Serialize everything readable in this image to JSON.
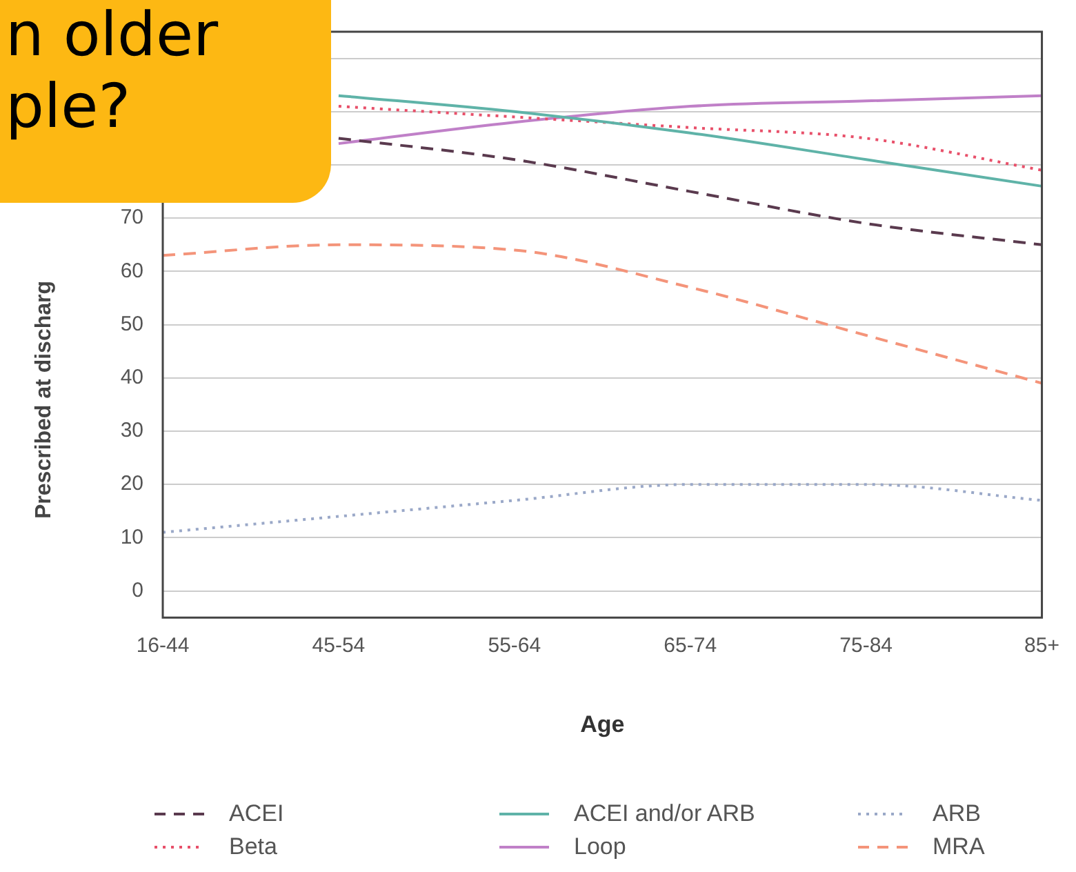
{
  "chart_data": {
    "type": "line",
    "xlabel": "Age",
    "ylabel": "Prescribed at discharg",
    "categories": [
      "16-44",
      "45-54",
      "55-64",
      "65-74",
      "75-84",
      "85+"
    ],
    "ylim": [
      -5,
      105
    ],
    "yticks": [
      0,
      10,
      20,
      30,
      40,
      50,
      60,
      70,
      {
        "value": 80,
        "label": null
      },
      {
        "value": 90,
        "label": null
      },
      {
        "value": 100,
        "label": null
      }
    ],
    "grid": "y",
    "legend": "bottom",
    "marker": "none",
    "annotations": [
      "n older\nple?"
    ],
    "series": [
      {
        "name": "ACEI",
        "color": "#5a3a4e",
        "line_style": "dashed",
        "values": [
          null,
          85,
          81,
          75,
          69,
          65
        ]
      },
      {
        "name": "ACEI and/or ARB",
        "color": "#5fb3a8",
        "line_style": "solid",
        "values": [
          null,
          93,
          90,
          86,
          81,
          76
        ]
      },
      {
        "name": "ARB",
        "color": "#9aa8c8",
        "line_style": "dotted",
        "values": [
          11,
          14,
          17,
          20,
          20,
          17
        ]
      },
      {
        "name": "Beta",
        "color": "#e8506a",
        "line_style": "dotted",
        "values": [
          null,
          91,
          89,
          87,
          85,
          79
        ]
      },
      {
        "name": "Loop",
        "color": "#c080c8",
        "line_style": "solid",
        "values": [
          null,
          84,
          88,
          91,
          92,
          93
        ]
      },
      {
        "name": "MRA",
        "color": "#f4947a",
        "line_style": "dashed",
        "values": [
          63,
          65,
          64,
          57,
          48,
          39
        ]
      }
    ]
  }
}
